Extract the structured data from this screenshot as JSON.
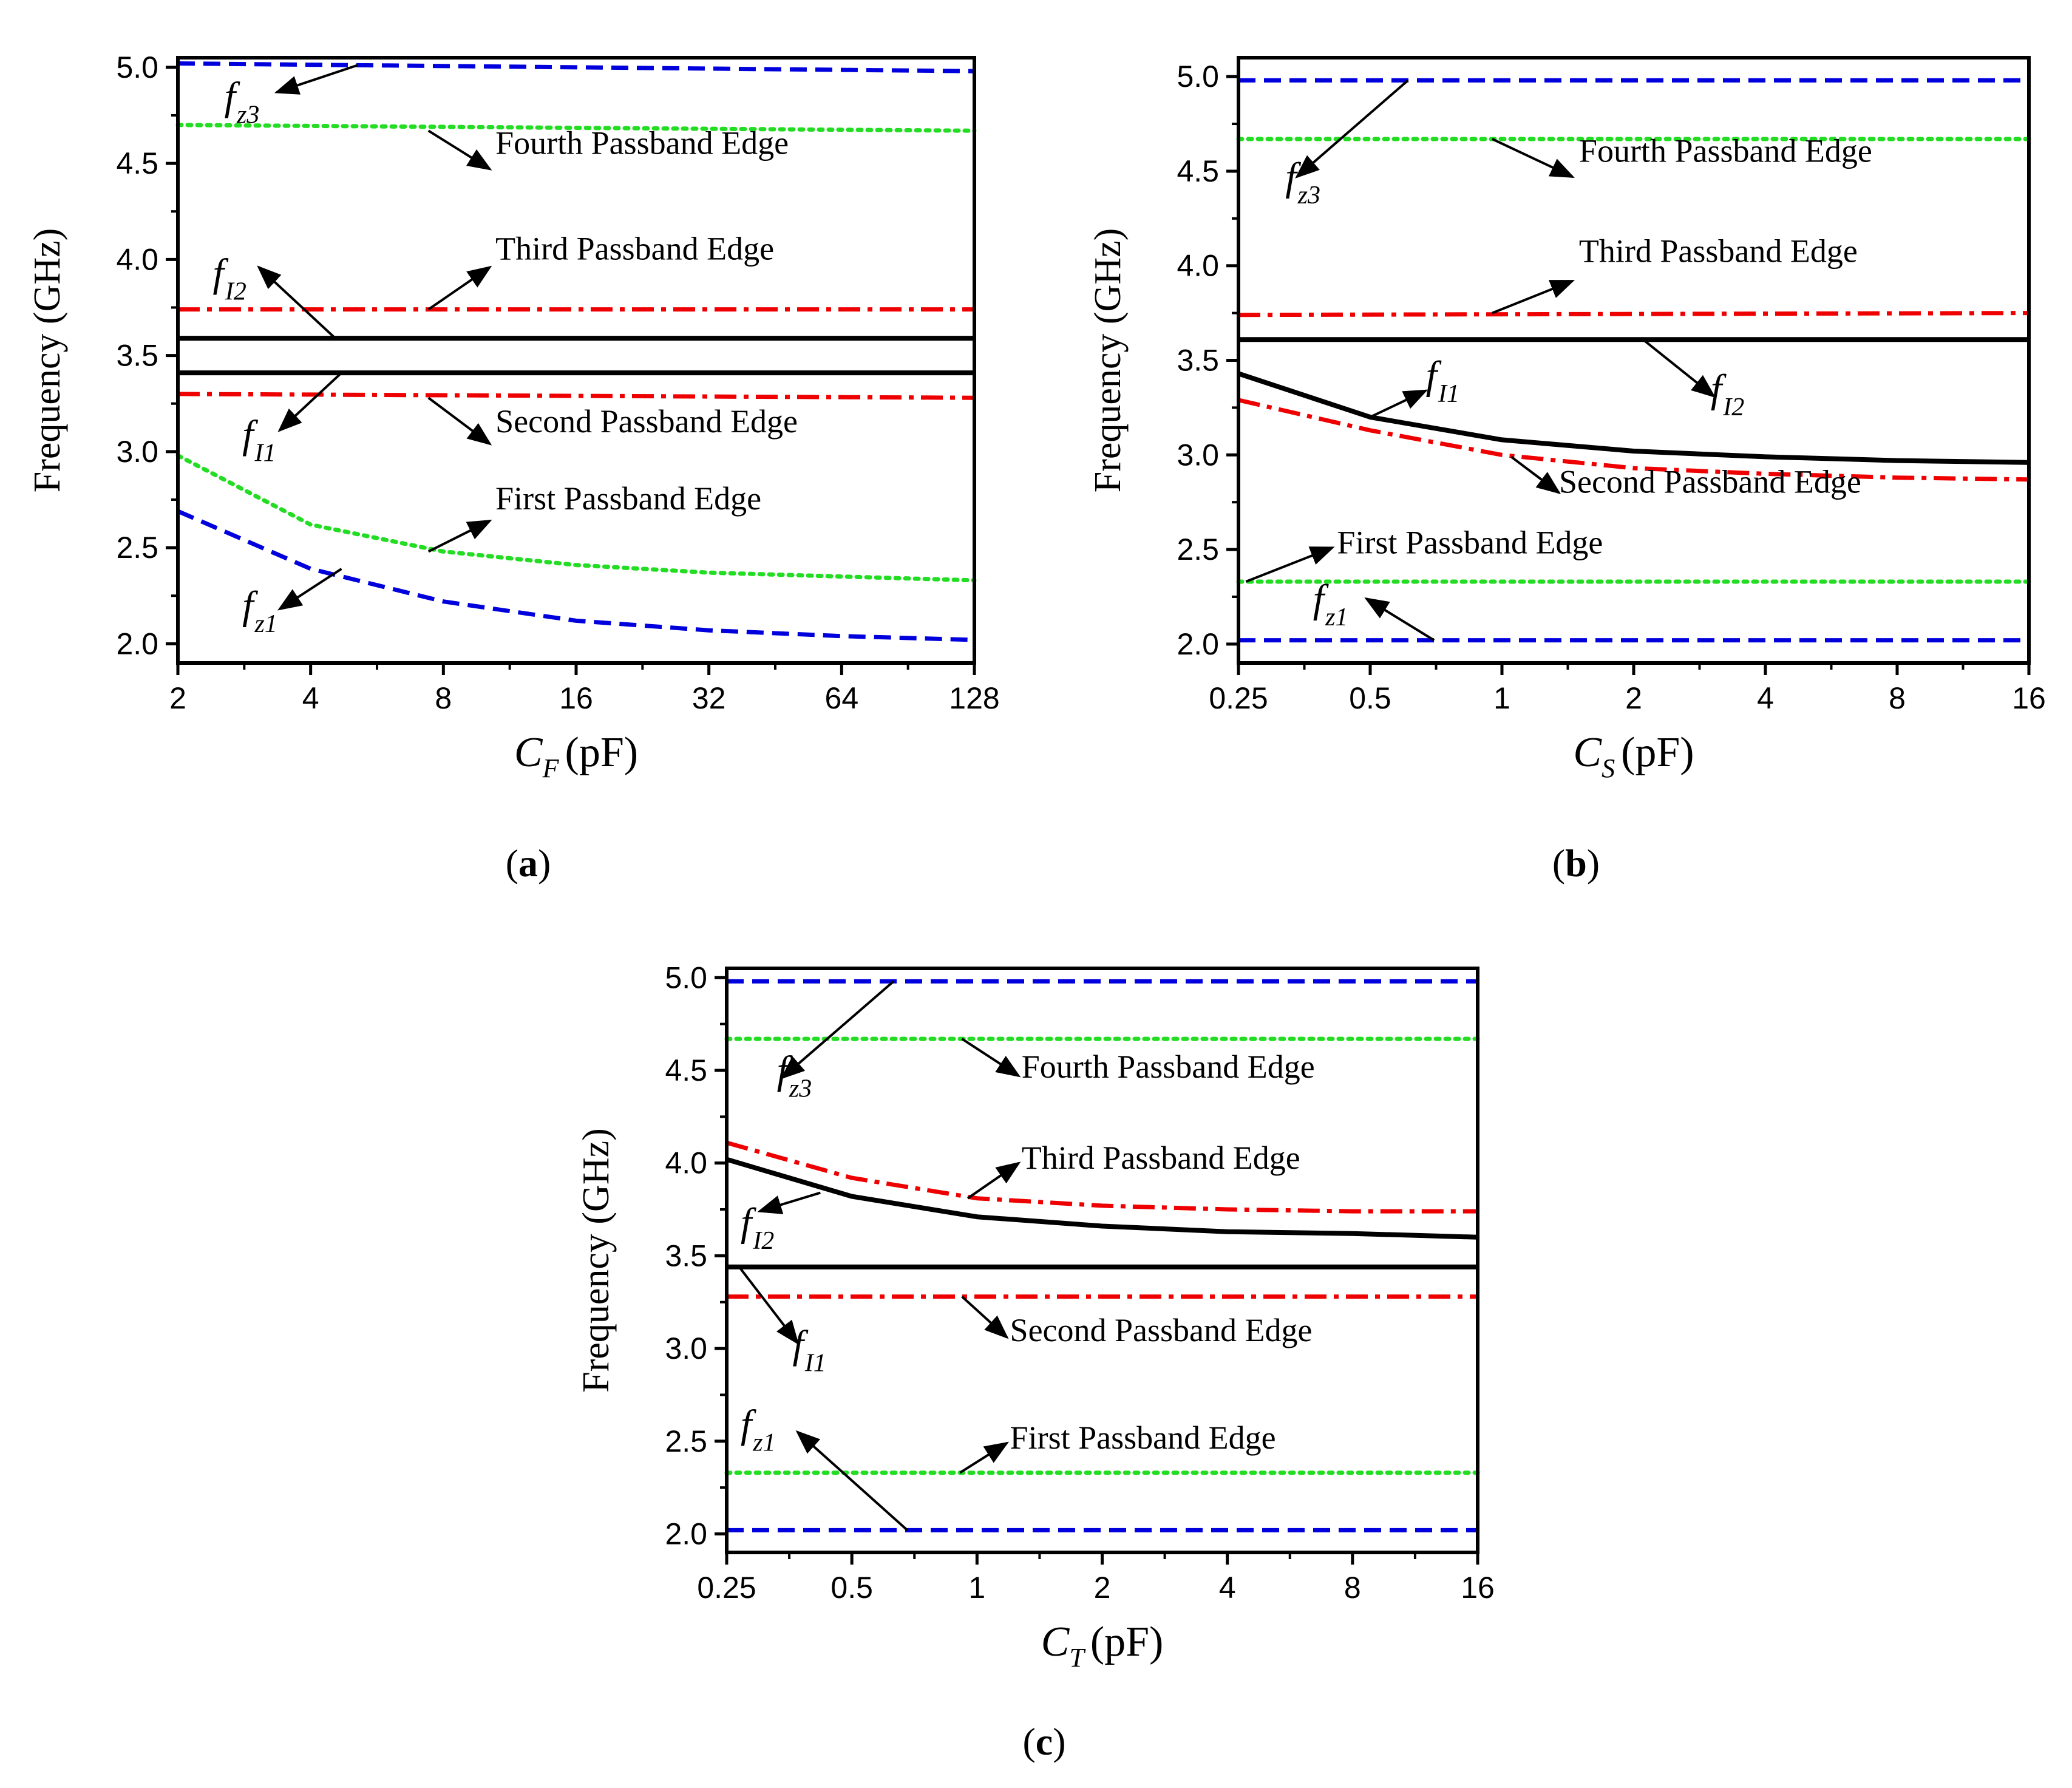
{
  "colors": {
    "fz": "#0000dd",
    "fourth_edge": "#22dd22",
    "third_edge": "#ee0000",
    "second_edge": "#ee0000",
    "fI": "#000000",
    "first_edge": "#22dd22"
  },
  "chart_data": [
    {
      "id": "a",
      "panel_label": "a",
      "type": "line",
      "xscale": "log2",
      "x_ticks": [
        2,
        4,
        8,
        16,
        32,
        64,
        128
      ],
      "x_tick_labels": [
        "2",
        "4",
        "8",
        "16",
        "32",
        "64",
        "128"
      ],
      "y_ticks": [
        2.0,
        2.5,
        3.0,
        3.5,
        4.0,
        4.5,
        5.0
      ],
      "y_tick_labels": [
        "2.0",
        "2.5",
        "3.0",
        "3.5",
        "4.0",
        "4.5",
        "5.0"
      ],
      "ylim": [
        1.9,
        5.05
      ],
      "xlabel_symbol": "C",
      "xlabel_sub": "F",
      "xlabel_unit": "(pF)",
      "ylabel": "Frequency (GHz)",
      "series": [
        {
          "name": "fz3",
          "style": "dash",
          "color": "#0000dd",
          "x": [
            2,
            128
          ],
          "y": [
            5.02,
            4.98
          ]
        },
        {
          "name": "Fourth Passband Edge",
          "style": "dot",
          "color": "#22dd22",
          "x": [
            2,
            128
          ],
          "y": [
            4.7,
            4.67
          ]
        },
        {
          "name": "Third Passband Edge",
          "style": "dashdot",
          "color": "#ee0000",
          "x": [
            2,
            128
          ],
          "y": [
            3.74,
            3.74
          ]
        },
        {
          "name": "fI2",
          "style": "solid",
          "color": "#000000",
          "x": [
            2,
            128
          ],
          "y": [
            3.59,
            3.59
          ]
        },
        {
          "name": "fI1",
          "style": "solid",
          "color": "#000000",
          "x": [
            2,
            128
          ],
          "y": [
            3.41,
            3.41
          ]
        },
        {
          "name": "Second Passband Edge",
          "style": "dashdot",
          "color": "#ee0000",
          "x": [
            2,
            128
          ],
          "y": [
            3.3,
            3.28
          ]
        },
        {
          "name": "First Passband Edge",
          "style": "dot",
          "color": "#22dd22",
          "x": [
            2,
            4,
            8,
            16,
            32,
            64,
            128
          ],
          "y": [
            2.98,
            2.62,
            2.48,
            2.41,
            2.37,
            2.35,
            2.33
          ]
        },
        {
          "name": "fz1",
          "style": "dash",
          "color": "#0000dd",
          "x": [
            2,
            4,
            8,
            16,
            32,
            64,
            128
          ],
          "y": [
            2.69,
            2.39,
            2.22,
            2.12,
            2.07,
            2.04,
            2.02
          ]
        }
      ],
      "annotations": [
        {
          "kind": "label",
          "text": "Fourth Passband Edge",
          "x": 10.5,
          "y": 4.55
        },
        {
          "kind": "arrow",
          "x1": 7.4,
          "y1": 4.67,
          "x2": 10.2,
          "y2": 4.47
        },
        {
          "kind": "label",
          "text": "Third Passband Edge",
          "x": 10.5,
          "y": 4.0
        },
        {
          "kind": "arrow",
          "x1": 7.4,
          "y1": 3.74,
          "x2": 10.2,
          "y2": 3.96
        },
        {
          "kind": "label",
          "text": "Second Passband Edge",
          "x": 10.5,
          "y": 3.1
        },
        {
          "kind": "arrow",
          "x1": 7.4,
          "y1": 3.28,
          "x2": 10.2,
          "y2": 3.04
        },
        {
          "kind": "label",
          "text": "First Passband Edge",
          "x": 10.5,
          "y": 2.7
        },
        {
          "kind": "arrow",
          "x1": 7.4,
          "y1": 2.48,
          "x2": 10.2,
          "y2": 2.64
        },
        {
          "kind": "symbol",
          "text": "f",
          "sub": "z3",
          "x": 2.55,
          "y": 4.78
        },
        {
          "kind": "arrow",
          "x1": 5.1,
          "y1": 5.01,
          "x2": 3.35,
          "y2": 4.87
        },
        {
          "kind": "symbol",
          "text": "f",
          "sub": "I2",
          "x": 2.4,
          "y": 3.86
        },
        {
          "kind": "arrow",
          "x1": 4.55,
          "y1": 3.59,
          "x2": 3.05,
          "y2": 3.96
        },
        {
          "kind": "symbol",
          "text": "f",
          "sub": "I1",
          "x": 2.8,
          "y": 3.02
        },
        {
          "kind": "arrow",
          "x1": 4.7,
          "y1": 3.41,
          "x2": 3.4,
          "y2": 3.11
        },
        {
          "kind": "symbol",
          "text": "f",
          "sub": "z1",
          "x": 2.8,
          "y": 2.13
        },
        {
          "kind": "arrow",
          "x1": 4.7,
          "y1": 2.39,
          "x2": 3.4,
          "y2": 2.18
        }
      ]
    },
    {
      "id": "b",
      "panel_label": "b",
      "type": "line",
      "xscale": "log2",
      "x_ticks": [
        0.25,
        0.5,
        1,
        2,
        4,
        8,
        16
      ],
      "x_tick_labels": [
        "0.25",
        "0.5",
        "1",
        "2",
        "4",
        "8",
        "16"
      ],
      "y_ticks": [
        2.0,
        2.5,
        3.0,
        3.5,
        4.0,
        4.5,
        5.0
      ],
      "y_tick_labels": [
        "2.0",
        "2.5",
        "3.0",
        "3.5",
        "4.0",
        "4.5",
        "5.0"
      ],
      "ylim": [
        1.9,
        5.1
      ],
      "xlabel_symbol": "C",
      "xlabel_sub": "S",
      "xlabel_unit": "(pF)",
      "ylabel": "Frequency (GHz)",
      "series": [
        {
          "name": "fz3",
          "style": "dash",
          "color": "#0000dd",
          "x": [
            0.25,
            16
          ],
          "y": [
            4.98,
            4.98
          ]
        },
        {
          "name": "Fourth Passband Edge",
          "style": "dot",
          "color": "#22dd22",
          "x": [
            0.25,
            16
          ],
          "y": [
            4.67,
            4.67
          ]
        },
        {
          "name": "Third Passband Edge",
          "style": "dashdot",
          "color": "#ee0000",
          "x": [
            0.25,
            16
          ],
          "y": [
            3.74,
            3.75
          ]
        },
        {
          "name": "fI2",
          "style": "solid",
          "color": "#000000",
          "x": [
            0.25,
            16
          ],
          "y": [
            3.61,
            3.61
          ]
        },
        {
          "name": "fI1",
          "style": "solid",
          "color": "#000000",
          "x": [
            0.25,
            0.5,
            1,
            2,
            4,
            8,
            16
          ],
          "y": [
            3.43,
            3.2,
            3.08,
            3.02,
            2.99,
            2.97,
            2.96
          ]
        },
        {
          "name": "Second Passband Edge",
          "style": "dashdot",
          "color": "#ee0000",
          "x": [
            0.25,
            0.5,
            1,
            2,
            4,
            8,
            16
          ],
          "y": [
            3.29,
            3.13,
            3.0,
            2.93,
            2.9,
            2.88,
            2.87
          ]
        },
        {
          "name": "First Passband Edge",
          "style": "dot",
          "color": "#22dd22",
          "x": [
            0.25,
            16
          ],
          "y": [
            2.33,
            2.33
          ]
        },
        {
          "name": "fz1",
          "style": "dash",
          "color": "#0000dd",
          "x": [
            0.25,
            16
          ],
          "y": [
            2.02,
            2.02
          ]
        }
      ],
      "annotations": [
        {
          "kind": "label",
          "text": "Fourth Passband Edge",
          "x": 1.5,
          "y": 4.55
        },
        {
          "kind": "arrow",
          "x1": 0.95,
          "y1": 4.67,
          "x2": 1.45,
          "y2": 4.47
        },
        {
          "kind": "label",
          "text": "Third Passband Edge",
          "x": 1.5,
          "y": 4.02
        },
        {
          "kind": "arrow",
          "x1": 0.95,
          "y1": 3.75,
          "x2": 1.45,
          "y2": 3.92
        },
        {
          "kind": "label",
          "text": "Second Passband Edge",
          "x": 1.35,
          "y": 2.8
        },
        {
          "kind": "arrow",
          "x1": 1.05,
          "y1": 2.99,
          "x2": 1.35,
          "y2": 2.8
        },
        {
          "kind": "label",
          "text": "First Passband Edge",
          "x": 0.42,
          "y": 2.48
        },
        {
          "kind": "arrow",
          "x1": 0.26,
          "y1": 2.33,
          "x2": 0.41,
          "y2": 2.51
        },
        {
          "kind": "symbol",
          "text": "f",
          "sub": "z3",
          "x": 0.32,
          "y": 4.4
        },
        {
          "kind": "arrow",
          "x1": 0.61,
          "y1": 4.98,
          "x2": 0.34,
          "y2": 4.47
        },
        {
          "kind": "symbol",
          "text": "f",
          "sub": "I2",
          "x": 3.0,
          "y": 3.28
        },
        {
          "kind": "arrow",
          "x1": 2.1,
          "y1": 3.61,
          "x2": 3.05,
          "y2": 3.31
        },
        {
          "kind": "symbol",
          "text": "f",
          "sub": "I1",
          "x": 0.67,
          "y": 3.35
        },
        {
          "kind": "arrow",
          "x1": 0.5,
          "y1": 3.2,
          "x2": 0.67,
          "y2": 3.34
        },
        {
          "kind": "symbol",
          "text": "f",
          "sub": "z1",
          "x": 0.37,
          "y": 2.17
        },
        {
          "kind": "arrow",
          "x1": 0.7,
          "y1": 2.02,
          "x2": 0.49,
          "y2": 2.24
        }
      ]
    },
    {
      "id": "c",
      "panel_label": "c",
      "type": "line",
      "xscale": "log2",
      "x_ticks": [
        0.25,
        0.5,
        1,
        2,
        4,
        8,
        16
      ],
      "x_tick_labels": [
        "0.25",
        "0.5",
        "1",
        "2",
        "4",
        "8",
        "16"
      ],
      "y_ticks": [
        2.0,
        2.5,
        3.0,
        3.5,
        4.0,
        4.5,
        5.0
      ],
      "y_tick_labels": [
        "2.0",
        "2.5",
        "3.0",
        "3.5",
        "4.0",
        "4.5",
        "5.0"
      ],
      "ylim": [
        1.9,
        5.05
      ],
      "xlabel_symbol": "C",
      "xlabel_sub": "T",
      "xlabel_unit": "(pF)",
      "ylabel": "Frequency (GHz)",
      "series": [
        {
          "name": "fz3",
          "style": "dash",
          "color": "#0000dd",
          "x": [
            0.25,
            16
          ],
          "y": [
            4.98,
            4.98
          ]
        },
        {
          "name": "Fourth Passband Edge",
          "style": "dot",
          "color": "#22dd22",
          "x": [
            0.25,
            16
          ],
          "y": [
            4.67,
            4.67
          ]
        },
        {
          "name": "Third Passband Edge",
          "style": "dashdot",
          "color": "#ee0000",
          "x": [
            0.25,
            0.5,
            1,
            2,
            4,
            8,
            16
          ],
          "y": [
            4.11,
            3.92,
            3.81,
            3.77,
            3.75,
            3.74,
            3.74
          ]
        },
        {
          "name": "fI2",
          "style": "solid",
          "color": "#000000",
          "x": [
            0.25,
            0.5,
            1,
            2,
            4,
            8,
            16
          ],
          "y": [
            4.02,
            3.82,
            3.71,
            3.66,
            3.63,
            3.62,
            3.6
          ]
        },
        {
          "name": "fI1",
          "style": "solid",
          "color": "#000000",
          "x": [
            0.25,
            16
          ],
          "y": [
            3.44,
            3.44
          ]
        },
        {
          "name": "Second Passband Edge",
          "style": "dashdot",
          "color": "#ee0000",
          "x": [
            0.25,
            16
          ],
          "y": [
            3.28,
            3.28
          ]
        },
        {
          "name": "First Passband Edge",
          "style": "dot",
          "color": "#22dd22",
          "x": [
            0.25,
            16
          ],
          "y": [
            2.33,
            2.33
          ]
        },
        {
          "name": "fz1",
          "style": "dash",
          "color": "#0000dd",
          "x": [
            0.25,
            16
          ],
          "y": [
            2.02,
            2.02
          ]
        }
      ],
      "annotations": [
        {
          "kind": "label",
          "text": "Fourth Passband Edge",
          "x": 1.28,
          "y": 4.46
        },
        {
          "kind": "arrow",
          "x1": 0.92,
          "y1": 4.67,
          "x2": 1.26,
          "y2": 4.47
        },
        {
          "kind": "label",
          "text": "Third Passband Edge",
          "x": 1.28,
          "y": 3.97
        },
        {
          "kind": "arrow",
          "x1": 0.95,
          "y1": 3.81,
          "x2": 1.26,
          "y2": 4.0
        },
        {
          "kind": "label",
          "text": "Second Passband Edge",
          "x": 1.2,
          "y": 3.04
        },
        {
          "kind": "arrow",
          "x1": 0.92,
          "y1": 3.28,
          "x2": 1.18,
          "y2": 3.06
        },
        {
          "kind": "label",
          "text": "First Passband Edge",
          "x": 1.2,
          "y": 2.46
        },
        {
          "kind": "arrow",
          "x1": 0.91,
          "y1": 2.33,
          "x2": 1.18,
          "y2": 2.49
        },
        {
          "kind": "symbol",
          "text": "f",
          "sub": "z3",
          "x": 0.33,
          "y": 4.43
        },
        {
          "kind": "arrow",
          "x1": 0.63,
          "y1": 4.98,
          "x2": 0.34,
          "y2": 4.46
        },
        {
          "kind": "symbol",
          "text": "f",
          "sub": "I2",
          "x": 0.27,
          "y": 3.61
        },
        {
          "kind": "arrow",
          "x1": 0.42,
          "y1": 3.84,
          "x2": 0.3,
          "y2": 3.74
        },
        {
          "kind": "symbol",
          "text": "f",
          "sub": "I1",
          "x": 0.36,
          "y": 2.95
        },
        {
          "kind": "arrow",
          "x1": 0.27,
          "y1": 3.43,
          "x2": 0.37,
          "y2": 3.03
        },
        {
          "kind": "symbol",
          "text": "f",
          "sub": "z1",
          "x": 0.27,
          "y": 2.52
        },
        {
          "kind": "arrow",
          "x1": 0.68,
          "y1": 2.02,
          "x2": 0.37,
          "y2": 2.55
        }
      ]
    }
  ]
}
